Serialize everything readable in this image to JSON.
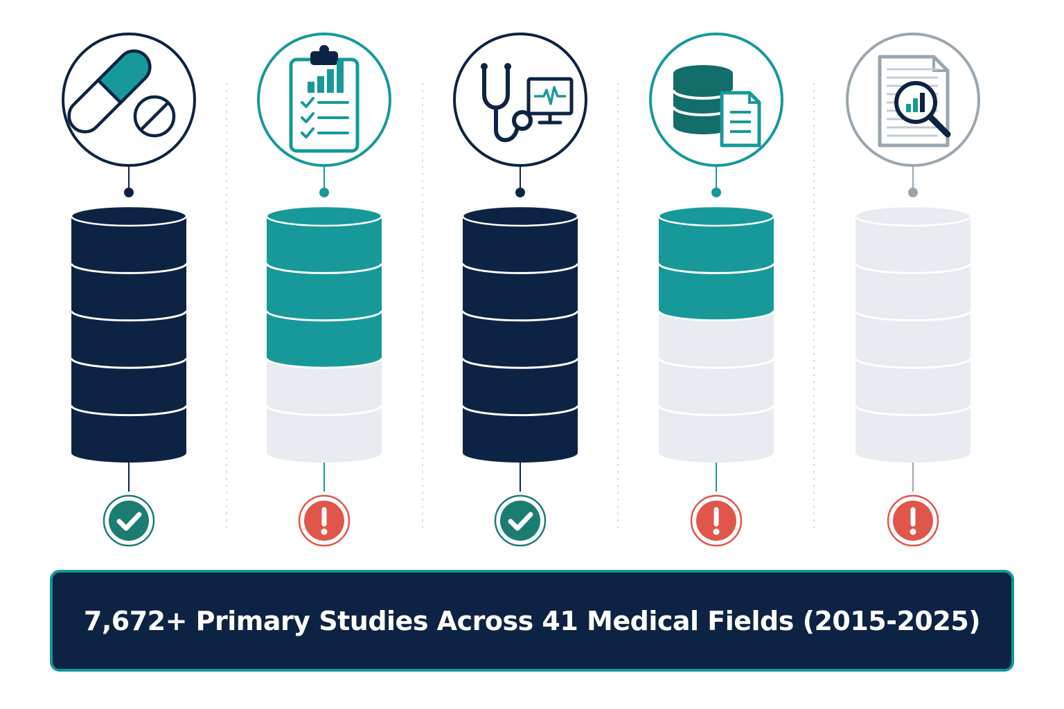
{
  "colors": {
    "navy": "#0d2343",
    "teal": "#17999a",
    "empty": "#e8ebef",
    "gray_icon": "#9aa6ae",
    "divider": "#d6dbe0",
    "success": "#1b7d72",
    "warning": "#e1564a"
  },
  "columns": [
    {
      "id": "medication",
      "icon": "pill-capsule-icon",
      "theme": "navy",
      "filled_segments": 5,
      "total_segments": 5,
      "status": "check",
      "status_icon": "check-icon"
    },
    {
      "id": "clinical-report",
      "icon": "clipboard-chart-icon",
      "theme": "teal",
      "filled_segments": 3,
      "total_segments": 5,
      "status": "alert",
      "status_icon": "exclamation-icon"
    },
    {
      "id": "diagnostics",
      "icon": "stethoscope-monitor-icon",
      "theme": "navy",
      "filled_segments": 5,
      "total_segments": 5,
      "status": "check",
      "status_icon": "check-icon"
    },
    {
      "id": "data-records",
      "icon": "database-document-icon",
      "theme": "teal",
      "filled_segments": 2,
      "total_segments": 5,
      "status": "alert",
      "status_icon": "exclamation-icon"
    },
    {
      "id": "literature-review",
      "icon": "document-search-icon",
      "theme": "gray",
      "filled_segments": 0,
      "total_segments": 5,
      "status": "alert",
      "status_icon": "exclamation-icon"
    }
  ],
  "banner": {
    "text": "7,672+ Primary Studies Across 41 Medical Fields (2015-2025)"
  }
}
